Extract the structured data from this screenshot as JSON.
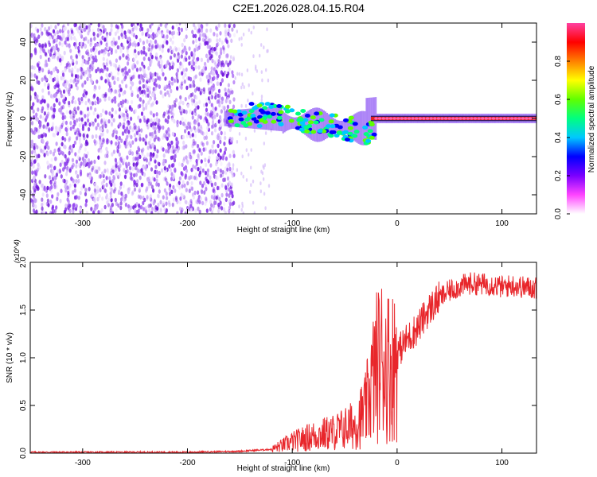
{
  "title": "C2E1.2026.028.04.15.R04",
  "chart_data": [
    {
      "type": "heatmap",
      "xlabel": "Height of straight line (km)",
      "ylabel": "Frequency (Hz)",
      "xlim": [
        -350,
        133
      ],
      "ylim": [
        -50,
        50
      ],
      "xticks": [
        -300,
        -200,
        -100,
        0,
        100
      ],
      "yticks": [
        -40,
        -20,
        0,
        20,
        40
      ],
      "grid": false,
      "colorbar": {
        "label": "Normalized spectral amplitude",
        "range": [
          0,
          1
        ],
        "ticks": [
          "0.0",
          "0.2",
          "0.4",
          "0.6",
          "0.8"
        ],
        "colors": [
          "#ffffff",
          "#ff44ff",
          "#7a00ff",
          "#0000ff",
          "#00c8ff",
          "#00ff80",
          "#60ff00",
          "#ffff00",
          "#ff8000",
          "#ff0000",
          "#ff40a0"
        ]
      },
      "regions": [
        {
          "name": "noise",
          "x_range": [
            -350,
            -155
          ],
          "freq_range": [
            -50,
            50
          ],
          "amplitude_range": [
            0.0,
            0.3
          ]
        },
        {
          "name": "signal",
          "x_range": [
            -165,
            133
          ],
          "center_freq": 0,
          "amplitude_range": [
            0.2,
            1.0
          ]
        }
      ]
    },
    {
      "type": "line",
      "xlabel": "Height of straight line (km)",
      "ylabel": "SNR (10 * v/v)",
      "y_multiplier": "(x10^4)",
      "xlim": [
        -350,
        133
      ],
      "ylim": [
        0,
        2.0
      ],
      "xticks": [
        -300,
        -200,
        -100,
        0,
        100
      ],
      "yticks": [
        "0.0",
        "0.5",
        "1.0",
        "1.5",
        "2.0"
      ],
      "series_color": "#e8262b",
      "x": [
        -350,
        -300,
        -250,
        -200,
        -150,
        -120,
        -100,
        -80,
        -60,
        -40,
        -30,
        -25,
        -20,
        -15,
        -10,
        -5,
        0,
        10,
        20,
        30,
        40,
        50,
        60,
        70,
        80,
        90,
        100,
        110,
        120,
        133
      ],
      "y": [
        0.01,
        0.01,
        0.01,
        0.01,
        0.02,
        0.04,
        0.12,
        0.18,
        0.22,
        0.3,
        0.45,
        0.7,
        0.9,
        1.0,
        0.95,
        0.9,
        1.05,
        1.2,
        1.32,
        1.5,
        1.62,
        1.7,
        1.75,
        1.78,
        1.77,
        1.77,
        1.74,
        1.76,
        1.74,
        1.73
      ]
    }
  ]
}
